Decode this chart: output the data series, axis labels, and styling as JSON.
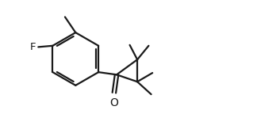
{
  "background_color": "#ffffff",
  "line_color": "#1a1a1a",
  "line_width": 1.6,
  "F_label": "F",
  "O_label": "O",
  "figsize": [
    3.24,
    1.68
  ],
  "dpi": 100
}
